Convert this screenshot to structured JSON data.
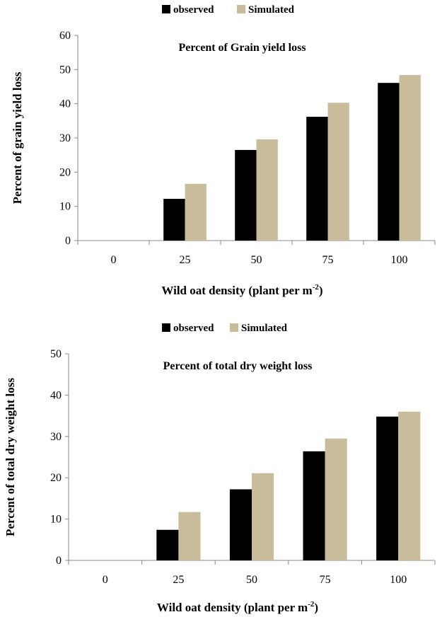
{
  "chart_data": [
    {
      "type": "bar",
      "title": "Percent of Grain yield loss",
      "xlabel": "Wild oat density (plant per m",
      "xlabel_sup": "-2",
      "xlabel_close": ")",
      "ylabel": "Percent of grain yield loss",
      "categories": [
        "0",
        "25",
        "50",
        "75",
        "100"
      ],
      "ylim": [
        0,
        60
      ],
      "yticks": [
        "0",
        "10",
        "20",
        "30",
        "40",
        "50",
        "60"
      ],
      "legend_position": "top",
      "series": [
        {
          "name": "observed",
          "color": "#000000",
          "values": [
            0,
            12.2,
            26.5,
            36.2,
            46.1
          ]
        },
        {
          "name": "Simulated",
          "color": "#c8bc9a",
          "values": [
            0,
            16.6,
            29.6,
            40.3,
            48.4
          ]
        }
      ]
    },
    {
      "type": "bar",
      "title": "Percent of total dry weight loss",
      "xlabel": "Wild oat density (plant per m",
      "xlabel_sup": "-2",
      "xlabel_close": ")",
      "ylabel": "Percent of total dry weight loss",
      "categories": [
        "0",
        "25",
        "50",
        "75",
        "100"
      ],
      "ylim": [
        0,
        50
      ],
      "yticks": [
        "0",
        "10",
        "20",
        "30",
        "40",
        "50"
      ],
      "legend_position": "top",
      "series": [
        {
          "name": "observed",
          "color": "#000000",
          "values": [
            0,
            7.4,
            17.2,
            26.4,
            34.8
          ]
        },
        {
          "name": "Simulated",
          "color": "#c8bc9a",
          "values": [
            0,
            11.7,
            21.1,
            29.5,
            36.0
          ]
        }
      ]
    }
  ]
}
